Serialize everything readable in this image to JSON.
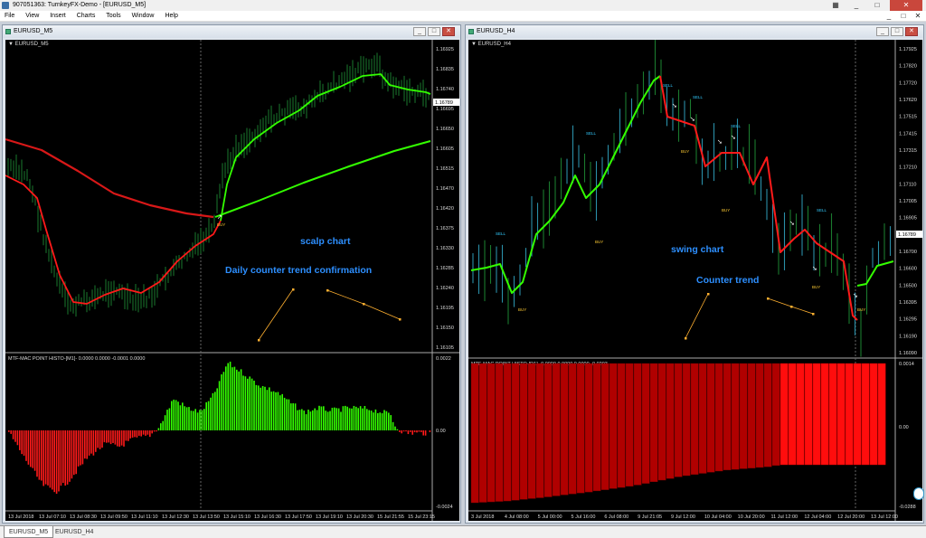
{
  "app": {
    "title": "907051363: TurnkeyFX-Demo - [EURUSD_M5]",
    "window_controls": [
      "_",
      "□",
      "✕"
    ]
  },
  "menu": [
    "File",
    "View",
    "Insert",
    "Charts",
    "Tools",
    "Window",
    "Help"
  ],
  "colors": {
    "bull": "#33ff00",
    "bull_dark": "#1a7a2e",
    "bear": "#ff1a1a",
    "bear_dark": "#b00000",
    "ma_slow": "#d81818",
    "annotation": "#2d8fff",
    "signal": "#ffb030",
    "buy": "#ffcc33",
    "sell": "#33ccff"
  },
  "charts": {
    "m5": {
      "window_title": "EURUSD_M5",
      "symbol": "EURUSD_M5",
      "price_labels": [
        "1.16925",
        "1.16835",
        "1.16740",
        "1.16695",
        "1.16650",
        "1.16605",
        "1.16515",
        "1.16470",
        "1.16420",
        "1.16375",
        "1.16330",
        "1.16285",
        "1.16240",
        "1.16195",
        "1.16150",
        "1.16105"
      ],
      "current_price": "1.16789",
      "buy_label": "BUY",
      "annotations": [
        "scalp chart",
        "Daily counter trend confirmation"
      ],
      "indicator_title": "MTF-MAC POINT HISTO-[M1]- 0.0000 0.0000 -0.0001 0.0000",
      "indicator_scale": [
        "0.0022",
        "0.00",
        "-0.0024"
      ],
      "time_labels": [
        "13 Jul 2018",
        "13 Jul 07:10",
        "13 Jul 08:30",
        "13 Jul 09:50",
        "13 Jul 11:10",
        "13 Jul 12:30",
        "13 Jul 13:50",
        "13 Jul 15:10",
        "13 Jul 16:30",
        "13 Jul 17:50",
        "13 Jul 19:10",
        "13 Jul 20:30",
        "15 Jul 21:55",
        "15 Jul 23:15"
      ]
    },
    "h4": {
      "window_title": "EURUSD_H4",
      "symbol": "EURUSD_H4",
      "price_labels": [
        "1.17925",
        "1.17820",
        "1.17720",
        "1.17620",
        "1.17515",
        "1.17415",
        "1.17315",
        "1.17210",
        "1.17110",
        "1.17005",
        "1.16905",
        "1.16800",
        "1.16700",
        "1.16600",
        "1.16500",
        "1.16395",
        "1.16295",
        "1.16190",
        "1.16090"
      ],
      "current_price": "1.16789",
      "sell_label": "SELL",
      "buy_label": "BUY",
      "annotations": [
        "swing chart",
        "Counter trend"
      ],
      "indicator_title": "MTF-MAC POINT HISTO-[D1]- 0.0000 0.0000 0.0000 -0.0203",
      "indicator_scale": [
        "0.0014",
        "0.00",
        "-0.0288"
      ],
      "time_labels": [
        "3 Jul 2018",
        "4 Jul 08:00",
        "5 Jul 00:00",
        "5 Jul 16:00",
        "6 Jul 08:00",
        "9 Jul 21:05",
        "9 Jul 12:00",
        "10 Jul 04:00",
        "10 Jul 20:00",
        "11 Jul 12:00",
        "12 Jul 04:00",
        "12 Jul 20:00",
        "13 Jul 12:00"
      ]
    }
  },
  "tabs": [
    "EURUSD_M5",
    "EURUSD_H4"
  ]
}
